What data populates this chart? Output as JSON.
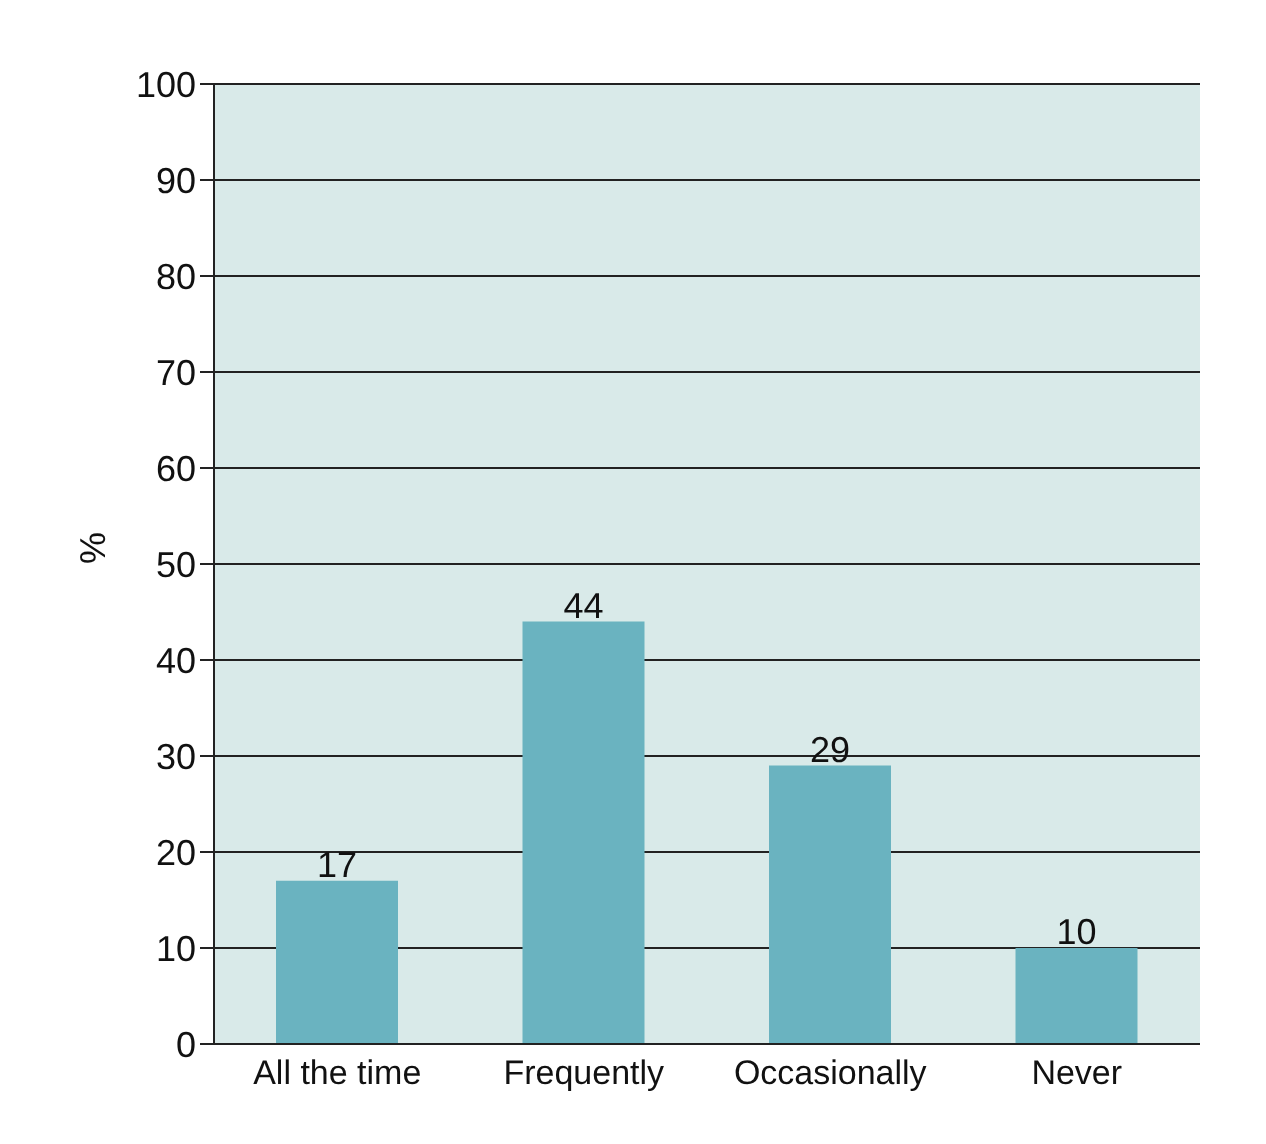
{
  "chart_data": {
    "type": "bar",
    "ylabel": "%",
    "categories": [
      "All the time",
      "Frequently",
      "Occasionally",
      "Never"
    ],
    "values": [
      17,
      44,
      29,
      10
    ],
    "color": "#6ab3c0",
    "ylim": [
      0,
      100
    ],
    "yticks": [
      0,
      10,
      20,
      30,
      40,
      50,
      60,
      70,
      80,
      90,
      100
    ],
    "grid": "y",
    "data_labels": true
  }
}
